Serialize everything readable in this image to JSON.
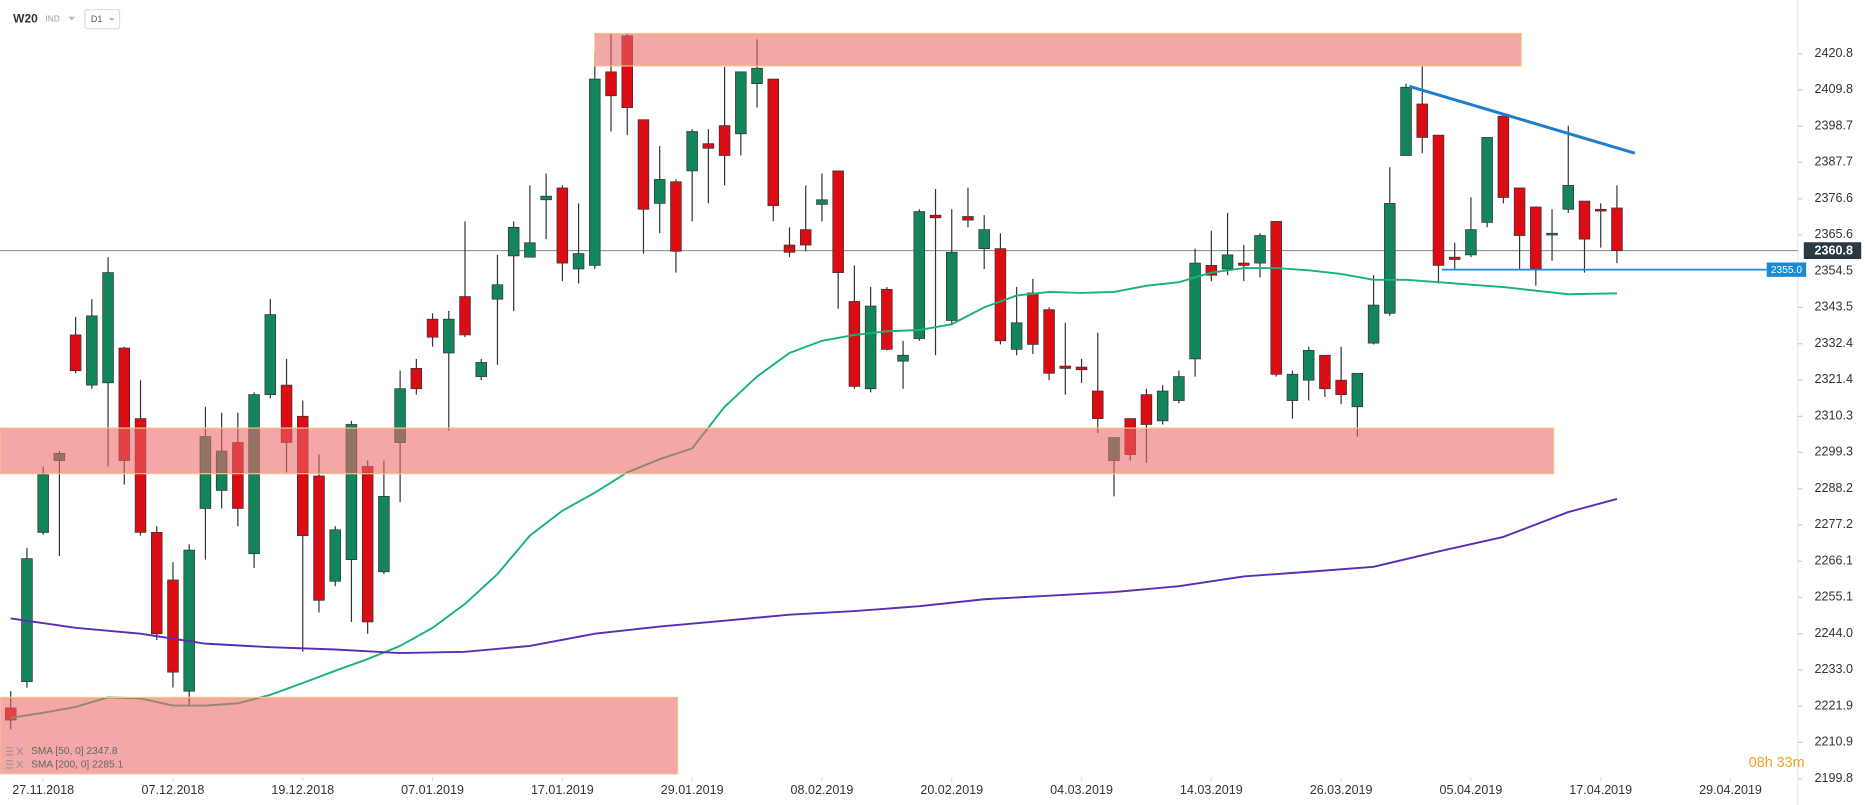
{
  "chart_data": {
    "type": "candlestick",
    "symbol": "W20",
    "market": "IND",
    "timeframe": "D1",
    "countdown": "08h 33m",
    "up_color": "#13855a",
    "down_color": "#dc0c14",
    "xlim": [
      -0.66,
      110
    ],
    "xticks": [
      {
        "value": 2,
        "label": "27.11.2018"
      },
      {
        "value": 10,
        "label": "07.12.2018"
      },
      {
        "value": 18,
        "label": "19.12.2018"
      },
      {
        "value": 26,
        "label": "07.01.2019"
      },
      {
        "value": 34,
        "label": "17.01.2019"
      },
      {
        "value": 42,
        "label": "29.01.2019"
      },
      {
        "value": 50,
        "label": "08.02.2019"
      },
      {
        "value": 58,
        "label": "20.02.2019"
      },
      {
        "value": 66,
        "label": "04.03.2019"
      },
      {
        "value": 74,
        "label": "14.03.2019"
      },
      {
        "value": 82,
        "label": "26.03.2019"
      },
      {
        "value": 90,
        "label": "05.04.2019"
      },
      {
        "value": 98,
        "label": "17.04.2019"
      },
      {
        "value": 106,
        "label": "29.04.2019"
      }
    ],
    "ylim": [
      2191.8,
      2437.2
    ],
    "yticks": [
      2420.8,
      2409.8,
      2398.7,
      2387.7,
      2376.6,
      2365.6,
      2354.5,
      2343.5,
      2332.4,
      2321.4,
      2310.3,
      2299.3,
      2288.2,
      2277.2,
      2266.1,
      2255.1,
      {
        "value": 2244,
        "label": "2244.0"
      },
      {
        "value": 2233,
        "label": "2233.0"
      },
      2221.9,
      2210.9,
      2199.8
    ],
    "candles": {
      "open": [
        2221.4,
        2229.4,
        2274.9,
        2296.8,
        2335.1,
        2319.8,
        2320.5,
        2331.1,
        2309.6,
        2274.9,
        2260.4,
        2226.5,
        2282.2,
        2287.7,
        2302.3,
        2268.4,
        2316.9,
        2319.8,
        2310.3,
        2292.1,
        2260.0,
        2266.6,
        2295.0,
        2262.9,
        2302.3,
        2324.9,
        2339.9,
        2329.6,
        2346.8,
        2322.4,
        2346.0,
        2359.2,
        2358.8,
        2376.3,
        2379.9,
        2355.2,
        2356.3,
        2415.3,
        2426.3,
        2400.7,
        2375.2,
        2381.8,
        2385.1,
        2393.4,
        2398.9,
        2396.4,
        2411.7,
        2413.1,
        2362.5,
        2367.2,
        2374.9,
        2385.1,
        2345.3,
        2318.7,
        2349.0,
        2327.1,
        2334.0,
        2371.6,
        2339.5,
        2371.2,
        2361.4,
        2361.4,
        2330.7,
        2347.9,
        2342.8,
        2325.6,
        2325.3,
        2318.0,
        2296.8,
        2309.6,
        2316.9,
        2308.9,
        2315.1,
        2327.8,
        2356.3,
        2355.2,
        2357.0,
        2357.0,
        2369.7,
        2315.1,
        2321.3,
        2328.9,
        2321.3,
        2313.2,
        2332.6,
        2341.7,
        2389.8,
        2405.5,
        2396.0,
        2358.8,
        2359.5,
        2369.4,
        2401.8,
        2379.9,
        2374.1,
        2365.7,
        2373.4,
        2375.9,
        2373.4,
        2373.8
      ],
      "high": [
        2226.5,
        2270.2,
        2295.0,
        2299.7,
        2340.6,
        2346.0,
        2358.8,
        2331.5,
        2321.3,
        2276.8,
        2265.8,
        2271.3,
        2313.2,
        2311.4,
        2311.4,
        2317.6,
        2346.0,
        2327.8,
        2315.1,
        2298.6,
        2276.8,
        2308.9,
        2296.8,
        2296.8,
        2324.2,
        2327.8,
        2341.7,
        2342.4,
        2369.7,
        2327.8,
        2359.5,
        2369.7,
        2380.7,
        2384.3,
        2380.7,
        2375.2,
        2420.8,
        2427.0,
        2427.0,
        2400.7,
        2392.7,
        2382.5,
        2397.8,
        2397.8,
        2416.8,
        2415.3,
        2425.2,
        2413.1,
        2367.9,
        2380.7,
        2384.3,
        2385.1,
        2356.3,
        2349.7,
        2349.7,
        2333.3,
        2373.4,
        2379.6,
        2373.4,
        2380.0,
        2371.6,
        2366.1,
        2349.7,
        2352.2,
        2343.5,
        2338.8,
        2327.8,
        2335.8,
        2303.8,
        2309.6,
        2318.7,
        2319.8,
        2324.2,
        2361.4,
        2366.8,
        2372.3,
        2362.5,
        2366.1,
        2369.7,
        2324.2,
        2331.5,
        2328.9,
        2331.5,
        2323.4,
        2353.3,
        2386.2,
        2411.7,
        2417.1,
        2396.0,
        2363.2,
        2377.0,
        2395.3,
        2402.6,
        2379.9,
        2374.1,
        2373.4,
        2398.9,
        2375.9,
        2375.2,
        2380.7
      ],
      "low": [
        2214.8,
        2227.6,
        2274.2,
        2267.7,
        2323.4,
        2318.7,
        2295.0,
        2289.5,
        2273.9,
        2242.1,
        2227.6,
        2222.1,
        2266.6,
        2282.2,
        2276.8,
        2264.0,
        2315.8,
        2293.2,
        2238.5,
        2250.5,
        2258.5,
        2247.6,
        2244.0,
        2262.2,
        2284.1,
        2316.9,
        2331.5,
        2305.9,
        2334.4,
        2321.3,
        2326.0,
        2342.4,
        2358.8,
        2364.3,
        2351.5,
        2350.8,
        2355.2,
        2397.1,
        2396.0,
        2359.9,
        2366.1,
        2354.1,
        2369.7,
        2375.2,
        2380.7,
        2389.8,
        2404.4,
        2369.7,
        2358.8,
        2360.6,
        2369.7,
        2343.1,
        2318.7,
        2317.6,
        2330.4,
        2318.7,
        2333.3,
        2328.9,
        2338.0,
        2367.9,
        2355.2,
        2332.2,
        2328.9,
        2329.3,
        2321.3,
        2316.9,
        2320.5,
        2305.2,
        2285.9,
        2296.8,
        2296.1,
        2307.8,
        2314.3,
        2322.4,
        2351.5,
        2353.3,
        2351.5,
        2352.6,
        2322.4,
        2309.6,
        2315.1,
        2316.2,
        2314.0,
        2304.1,
        2332.2,
        2340.9,
        2389.8,
        2390.5,
        2350.8,
        2355.2,
        2358.8,
        2367.9,
        2375.2,
        2355.2,
        2350.1,
        2357.7,
        2372.3,
        2354.1,
        2361.7,
        2357.0
      ],
      "close": [
        2217.7,
        2266.9,
        2292.5,
        2299.0,
        2324.2,
        2340.9,
        2354.1,
        2296.8,
        2274.9,
        2244.0,
        2232.3,
        2269.5,
        2304.1,
        2299.7,
        2282.2,
        2316.9,
        2341.3,
        2302.3,
        2273.9,
        2254.2,
        2275.7,
        2307.8,
        2247.6,
        2285.9,
        2318.7,
        2318.7,
        2334.4,
        2339.9,
        2335.1,
        2326.7,
        2350.4,
        2367.9,
        2363.2,
        2377.4,
        2357.0,
        2359.9,
        2413.1,
        2408.0,
        2404.4,
        2373.4,
        2382.5,
        2360.6,
        2397.1,
        2392.0,
        2389.8,
        2415.3,
        2416.4,
        2374.5,
        2360.3,
        2362.5,
        2376.3,
        2354.1,
        2319.4,
        2343.9,
        2330.7,
        2328.9,
        2372.7,
        2370.8,
        2360.3,
        2370.1,
        2367.2,
        2333.3,
        2338.8,
        2332.2,
        2323.4,
        2324.9,
        2324.5,
        2309.6,
        2303.8,
        2298.6,
        2307.8,
        2318.0,
        2322.4,
        2357.0,
        2353.3,
        2359.5,
        2356.3,
        2365.4,
        2323.1,
        2323.1,
        2330.4,
        2318.7,
        2316.9,
        2323.4,
        2344.2,
        2375.2,
        2410.6,
        2395.3,
        2356.3,
        2358.1,
        2367.2,
        2395.3,
        2377.0,
        2365.4,
        2355.2,
        2366.1,
        2380.7,
        2364.3,
        2373.0,
        2360.8
      ]
    },
    "series": [
      {
        "name": "SMA [50, 0]",
        "color": "#19b27b",
        "x": [
          0,
          2,
          4,
          6,
          8,
          10,
          12,
          14,
          16,
          18,
          20,
          22,
          24,
          26,
          28,
          30,
          32,
          34,
          36,
          38,
          40,
          42,
          44,
          46,
          48,
          50,
          52,
          54,
          56,
          58,
          60,
          62,
          64,
          66,
          68,
          70,
          72,
          74,
          76,
          78,
          80,
          82,
          84,
          86,
          88,
          90,
          92,
          94,
          96,
          99
        ],
        "values": [
          2218.4,
          2219.9,
          2221.7,
          2224.6,
          2224.3,
          2222.1,
          2222.1,
          2222.8,
          2225.4,
          2229.0,
          2232.7,
          2236.3,
          2240.3,
          2245.8,
          2253.1,
          2262.2,
          2273.9,
          2281.5,
          2287.0,
          2293.2,
          2297.2,
          2300.5,
          2313.2,
          2322.4,
          2329.6,
          2333.3,
          2335.1,
          2336.2,
          2336.6,
          2338.4,
          2343.5,
          2347.1,
          2348.2,
          2347.9,
          2348.2,
          2350.1,
          2351.2,
          2354.1,
          2355.5,
          2355.5,
          2354.8,
          2353.7,
          2351.9,
          2351.9,
          2351.2,
          2350.4,
          2349.7,
          2348.6,
          2347.5,
          2347.8
        ]
      },
      {
        "name": "SMA [200, 0]",
        "color": "#5a2db5",
        "x": [
          0,
          4,
          8,
          12,
          16,
          20,
          24,
          28,
          32,
          36,
          40,
          44,
          48,
          52,
          56,
          60,
          64,
          68,
          72,
          76,
          80,
          84,
          88,
          92,
          96,
          99
        ],
        "values": [
          2248.7,
          2245.8,
          2244.0,
          2241.0,
          2239.9,
          2239.2,
          2238.1,
          2238.5,
          2240.3,
          2244.0,
          2246.2,
          2248.0,
          2249.8,
          2250.9,
          2252.4,
          2254.5,
          2255.6,
          2256.7,
          2258.5,
          2261.5,
          2262.9,
          2264.4,
          2269.1,
          2273.5,
          2281.1,
          2285.1
        ]
      }
    ],
    "zones": [
      {
        "x": [
          36,
          93.1
        ],
        "y": [
          2417.1,
          2427.0
        ]
      },
      {
        "x": [
          -0.66,
          95.1
        ],
        "y": [
          2292.8,
          2306.7
        ]
      },
      {
        "x": [
          -0.66,
          41.1
        ],
        "y": [
          2201.3,
          2224.6
        ]
      }
    ],
    "trendline": {
      "x": [
        86.2,
        100.1
      ],
      "y": [
        2410.9,
        2390.5
      ]
    },
    "support": {
      "x": 88.2,
      "value": 2355,
      "label": "2355.0"
    }
  }
}
